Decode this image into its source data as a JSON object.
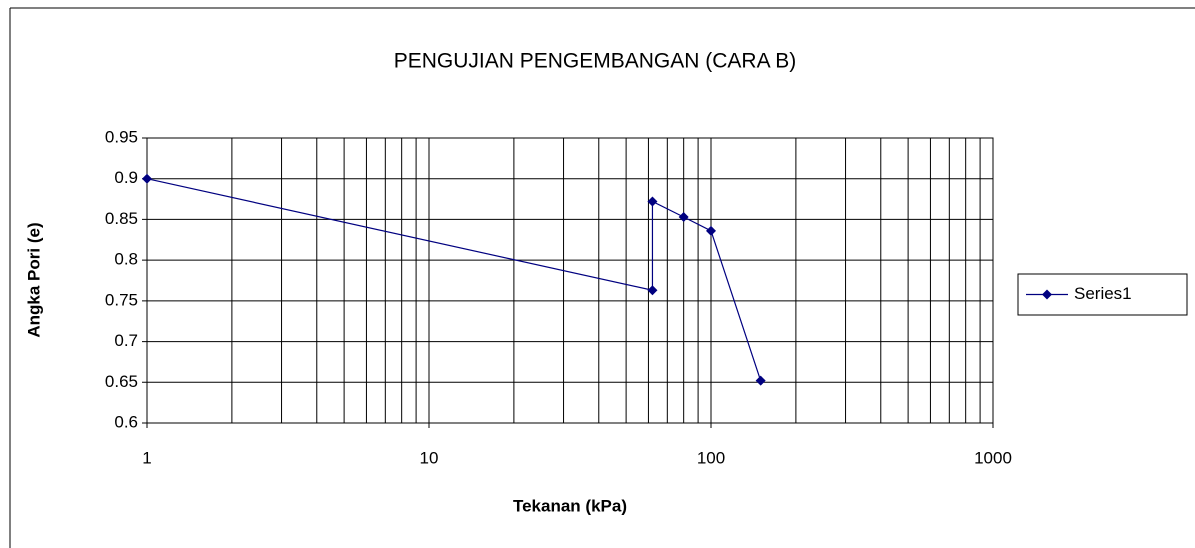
{
  "chart_data": {
    "type": "line",
    "title": "PENGUJIAN PENGEMBANGAN (CARA B)",
    "x_label": "Tekanan (kPa)",
    "y_label": "Angka Pori (e)",
    "x": [
      1,
      62,
      62,
      80,
      100,
      150
    ],
    "series": [
      {
        "name": "Series1",
        "color": "#000080",
        "values": [
          0.9,
          0.763,
          0.872,
          0.853,
          0.836,
          0.652
        ]
      }
    ],
    "xlim": [
      1,
      1000
    ],
    "xticks": [
      1,
      10,
      100,
      1000
    ],
    "xscale": "log",
    "ylim": [
      0.6,
      0.95
    ],
    "yticks": [
      0.6,
      0.65,
      0.7,
      0.75,
      0.8,
      0.85,
      0.9,
      0.95
    ],
    "grid": true,
    "legend": "right"
  }
}
